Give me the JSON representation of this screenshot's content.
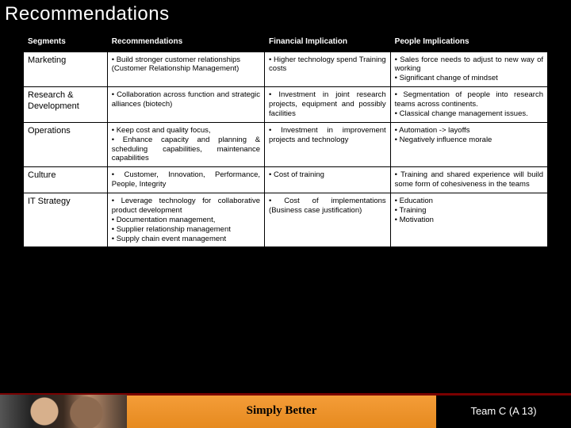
{
  "slide": {
    "title": "Recommendations",
    "table": {
      "headers": [
        "Segments",
        "Recommendations",
        "Financial Implication",
        "People Implications"
      ],
      "rows": [
        {
          "segment": "Marketing",
          "rec": "• Build stronger customer relationships\n(Customer Relationship Management)",
          "fin": "• Higher technology spend Training costs",
          "ppl": "• Sales force needs to adjust to new way of working\n• Significant change of mindset"
        },
        {
          "segment": "Research & Development",
          "rec": "• Collaboration across function and strategic alliances (biotech)",
          "fin": "• Investment in joint research projects, equipment and possibly facilities",
          "ppl": "• Segmentation of people into research teams across continents.\n• Classical change management issues."
        },
        {
          "segment": "Operations",
          "rec": "• Keep cost and quality focus,\n• Enhance capacity and planning & scheduling capabilities, maintenance capabilities",
          "fin": "• Investment in improvement projects and technology",
          "ppl": "• Automation -> layoffs\n• Negatively influence morale"
        },
        {
          "segment": "Culture",
          "rec": "• Customer, Innovation, Performance, People, Integrity",
          "fin": "• Cost of training",
          "ppl": "• Training and shared experience will build some form of cohesiveness in the teams"
        },
        {
          "segment": "IT Strategy",
          "rec": "• Leverage technology for collaborative product development\n• Documentation management,\n• Supplier relationship management\n• Supply chain event management",
          "fin": "• Cost of implementations (Business case justification)",
          "ppl": "• Education\n• Training\n• Motivation"
        }
      ]
    },
    "footer": {
      "center": "Simply Better",
      "right": "Team C (A 13)"
    },
    "colors": {
      "orange_top": "#f59e3a",
      "orange_bottom": "#e68a1f",
      "black": "#000000",
      "white": "#ffffff",
      "red_accent": "#7a0000"
    }
  }
}
